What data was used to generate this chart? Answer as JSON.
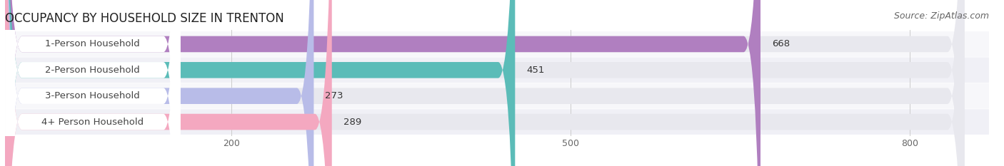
{
  "title": "OCCUPANCY BY HOUSEHOLD SIZE IN TRENTON",
  "source": "Source: ZipAtlas.com",
  "categories": [
    "1-Person Household",
    "2-Person Household",
    "3-Person Household",
    "4+ Person Household"
  ],
  "values": [
    668,
    451,
    273,
    289
  ],
  "bar_colors": [
    "#b07fc0",
    "#5bbcb8",
    "#b8bce8",
    "#f4a8c0"
  ],
  "value_labels": [
    "668",
    "451",
    "273",
    "289"
  ],
  "xlim": [
    0,
    870
  ],
  "xticks": [
    200,
    500,
    800
  ],
  "background_color": "#ffffff",
  "bar_bg_color": "#e8e8ee",
  "bar_row_bg": "#f7f7fa",
  "title_fontsize": 12,
  "source_fontsize": 9,
  "cat_fontsize": 9.5,
  "val_fontsize": 9.5,
  "tick_fontsize": 9,
  "bar_height": 0.62,
  "figsize": [
    14.06,
    2.33
  ],
  "dpi": 100
}
